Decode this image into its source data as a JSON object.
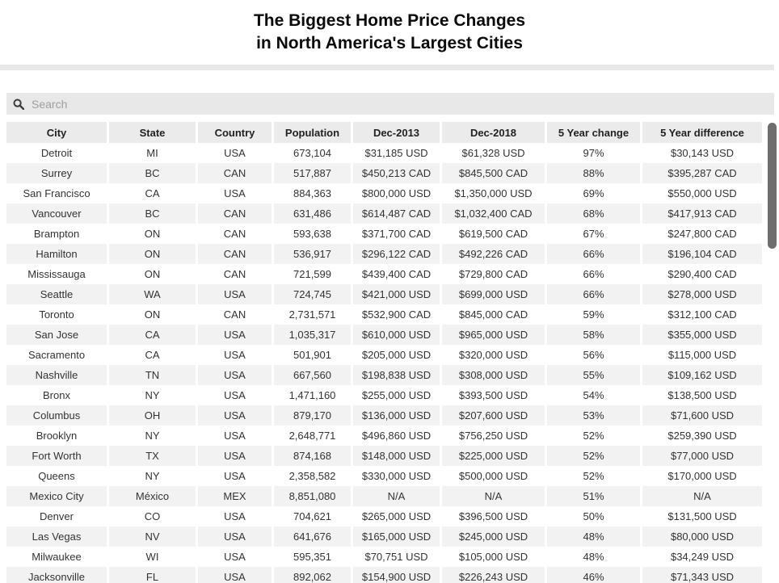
{
  "title": {
    "line1": "The Biggest Home Price Changes",
    "line2": "in North America's Largest Cities"
  },
  "search": {
    "placeholder": "Search",
    "value": ""
  },
  "table": {
    "columns": [
      "City",
      "State",
      "Country",
      "Population",
      "Dec-2013",
      "Dec-2018",
      "5 Year change",
      "5 Year difference"
    ],
    "rows": [
      [
        "Detroit",
        "MI",
        "USA",
        "673,104",
        "$31,185 USD",
        "$61,328 USD",
        "97%",
        "$30,143 USD"
      ],
      [
        "Surrey",
        "BC",
        "CAN",
        "517,887",
        "$450,213 CAD",
        "$845,500 CAD",
        "88%",
        "$395,287 CAD"
      ],
      [
        "San Francisco",
        "CA",
        "USA",
        "884,363",
        "$800,000 USD",
        "$1,350,000 USD",
        "69%",
        "$550,000 USD"
      ],
      [
        "Vancouver",
        "BC",
        "CAN",
        "631,486",
        "$614,487 CAD",
        "$1,032,400 CAD",
        "68%",
        "$417,913 CAD"
      ],
      [
        "Brampton",
        "ON",
        "CAN",
        "593,638",
        "$371,700 CAD",
        "$619,500 CAD",
        "67%",
        "$247,800 CAD"
      ],
      [
        "Hamilton",
        "ON",
        "CAN",
        "536,917",
        "$296,122 CAD",
        "$492,226 CAD",
        "66%",
        "$196,104 CAD"
      ],
      [
        "Mississauga",
        "ON",
        "CAN",
        "721,599",
        "$439,400 CAD",
        "$729,800 CAD",
        "66%",
        "$290,400 CAD"
      ],
      [
        "Seattle",
        "WA",
        "USA",
        "724,745",
        "$421,000 USD",
        "$699,000 USD",
        "66%",
        "$278,000 USD"
      ],
      [
        "Toronto",
        "ON",
        "CAN",
        "2,731,571",
        "$532,900 CAD",
        "$845,000 CAD",
        "59%",
        "$312,100 CAD"
      ],
      [
        "San Jose",
        "CA",
        "USA",
        "1,035,317",
        "$610,000 USD",
        "$965,000 USD",
        "58%",
        "$355,000 USD"
      ],
      [
        "Sacramento",
        "CA",
        "USA",
        "501,901",
        "$205,000 USD",
        "$320,000 USD",
        "56%",
        "$115,000 USD"
      ],
      [
        "Nashville",
        "TN",
        "USA",
        "667,560",
        "$198,838 USD",
        "$308,000 USD",
        "55%",
        "$109,162 USD"
      ],
      [
        "Bronx",
        "NY",
        "USA",
        "1,471,160",
        "$255,000 USD",
        "$393,500 USD",
        "54%",
        "$138,500 USD"
      ],
      [
        "Columbus",
        "OH",
        "USA",
        "879,170",
        "$136,000 USD",
        "$207,600 USD",
        "53%",
        "$71,600 USD"
      ],
      [
        "Brooklyn",
        "NY",
        "USA",
        "2,648,771",
        "$496,860 USD",
        "$756,250 USD",
        "52%",
        "$259,390 USD"
      ],
      [
        "Fort Worth",
        "TX",
        "USA",
        "874,168",
        "$148,000 USD",
        "$225,000 USD",
        "52%",
        "$77,000 USD"
      ],
      [
        "Queens",
        "NY",
        "USA",
        "2,358,582",
        "$330,000 USD",
        "$500,000 USD",
        "52%",
        "$170,000 USD"
      ],
      [
        "Mexico City",
        "México",
        "MEX",
        "8,851,080",
        "N/A",
        "N/A",
        "51%",
        "N/A"
      ],
      [
        "Denver",
        "CO",
        "USA",
        "704,621",
        "$265,000 USD",
        "$396,500 USD",
        "50%",
        "$131,500 USD"
      ],
      [
        "Las Vegas",
        "NV",
        "USA",
        "641,676",
        "$165,000 USD",
        "$245,000 USD",
        "48%",
        "$80,000 USD"
      ],
      [
        "Milwaukee",
        "WI",
        "USA",
        "595,351",
        "$70,751 USD",
        "$105,000 USD",
        "48%",
        "$34,249 USD"
      ],
      [
        "Jacksonville",
        "FL",
        "USA",
        "892,062",
        "$154,900 USD",
        "$226,243 USD",
        "46%",
        "$71,343 USD"
      ]
    ]
  },
  "colors": {
    "stripe": "#f2f2f2",
    "header_bg": "#ebebeb",
    "search_bg": "#e8e8e8",
    "scrollbar_thumb": "#6e6e6e",
    "text": "#333333"
  }
}
